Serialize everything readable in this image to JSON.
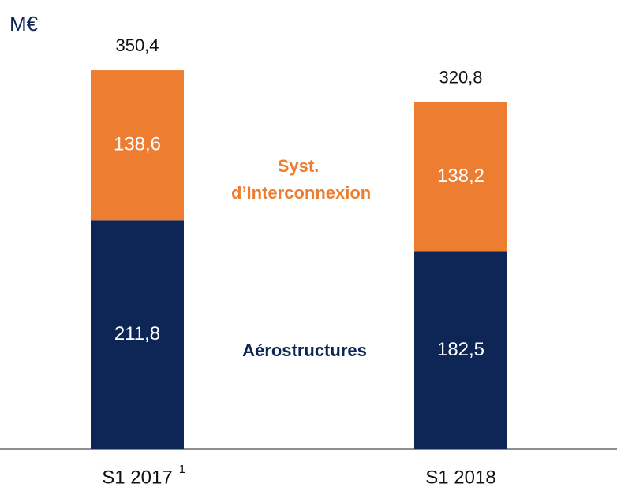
{
  "chart_data": {
    "type": "stacked_bar",
    "y_label": "M€",
    "categories": [
      "S1 2017",
      "S1 2018"
    ],
    "footnote_marks": [
      "1",
      null
    ],
    "series": [
      {
        "name": "Aérostructures",
        "color": "#0d2656",
        "values": [
          211.8,
          182.5
        ],
        "value_labels": [
          "211,8",
          "182,5"
        ]
      },
      {
        "name": "Syst. d’Interconnexion",
        "color": "#ed7d31",
        "values": [
          138.6,
          138.2
        ],
        "value_labels": [
          "138,6",
          "138,2"
        ]
      }
    ],
    "totals": {
      "values": [
        350.4,
        320.8
      ],
      "value_labels": [
        "350,4",
        "320,8"
      ]
    },
    "ylim": [
      0,
      400
    ]
  }
}
